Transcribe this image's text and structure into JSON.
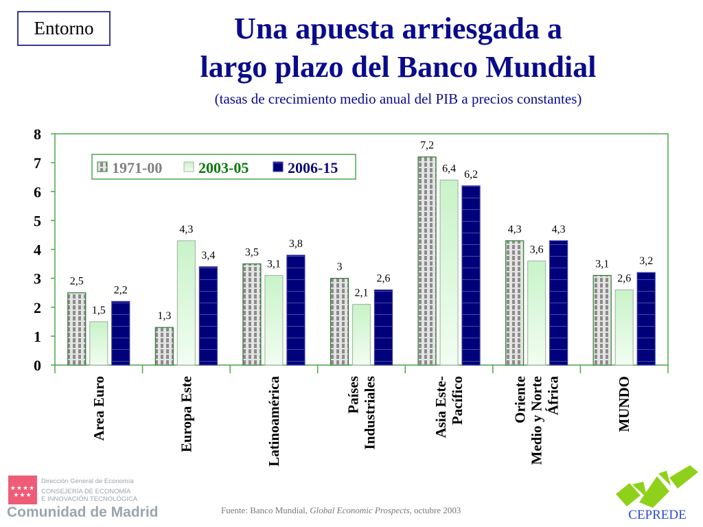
{
  "header": {
    "section_label": "Entorno",
    "title_line1": "Una apuesta arriesgada a",
    "title_line2": "largo plazo del Banco Mundial",
    "subtitle": "(tasas de crecimiento medio anual del PIB a precios constantes)"
  },
  "footer": {
    "source_prefix": "Fuente: Banco Mundial, ",
    "source_title": "Global Economic Prospects",
    "source_suffix": ", octubre 2003",
    "left_logo": {
      "line1": "Dirección General de Economía",
      "line2": "CONSEJERÍA DE ECONOMÍA",
      "line3": "E INNOVACIÓN TECNOLÓGICA",
      "name": "Comunidad de Madrid",
      "stars": "★★★★ ★★★",
      "color": "#ee5c78"
    },
    "right_logo": {
      "name": "CEPREDE",
      "color": "#8fd11a"
    }
  },
  "chart_data": {
    "type": "bar",
    "title": "Una apuesta arriesgada a largo plazo del Banco Mundial",
    "subtitle": "(tasas de crecimiento medio anual del PIB a precios constantes)",
    "xlabel": "",
    "ylabel": "",
    "ylim": [
      0,
      8
    ],
    "yticks": [
      "0",
      "1",
      "2",
      "3",
      "4",
      "5",
      "6",
      "7",
      "8"
    ],
    "grid": false,
    "legend_position": "top-left",
    "categories": [
      [
        "Area Euro"
      ],
      [
        "Europa Este"
      ],
      [
        "Latinoamérica"
      ],
      [
        "Países",
        "Industriales"
      ],
      [
        "Asia Este-",
        "Pacífico"
      ],
      [
        "Oriente",
        "Medio y Norte",
        "África"
      ],
      [
        "MUNDO"
      ]
    ],
    "series": [
      {
        "name": "1971-00",
        "values": [
          2.5,
          1.3,
          3.5,
          3.0,
          7.2,
          4.3,
          3.1
        ],
        "labels": [
          "2,5",
          "1,3",
          "3,5",
          "3",
          "7,2",
          "4,3",
          "3,1"
        ],
        "color": "#8c8c8c",
        "legend_color": "#808080"
      },
      {
        "name": "2003-05",
        "values": [
          1.5,
          4.3,
          3.1,
          2.1,
          6.4,
          3.6,
          2.6
        ],
        "labels": [
          "1,5",
          "4,3",
          "3,1",
          "2,1",
          "6,4",
          "3,6",
          "2,6"
        ],
        "color": "#d9f7d9",
        "legend_color": "#0a7a0a"
      },
      {
        "name": "2006-15",
        "values": [
          2.2,
          3.4,
          3.8,
          2.6,
          6.2,
          4.3,
          3.2
        ],
        "labels": [
          "2,2",
          "3,4",
          "3,8",
          "2,6",
          "6,2",
          "4,3",
          "3,2"
        ],
        "color": "#00007a",
        "legend_color": "#0a0a7a"
      }
    ],
    "axis_color": "#4aa54a"
  }
}
